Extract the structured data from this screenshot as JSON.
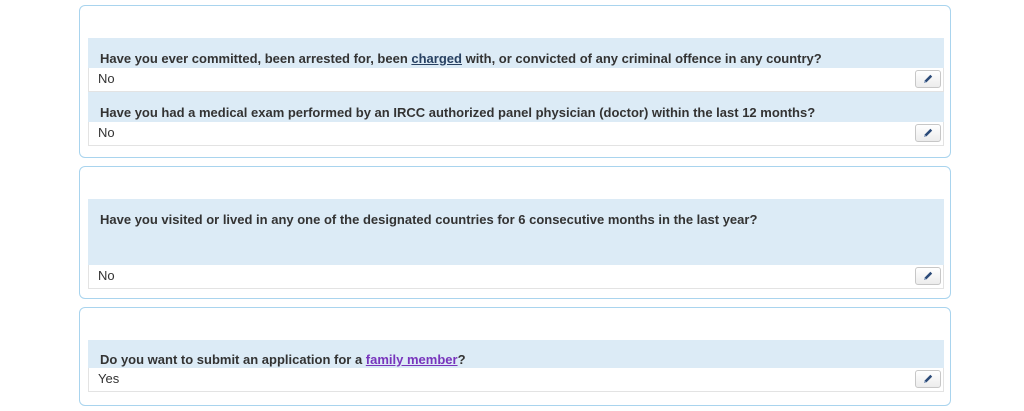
{
  "questions": [
    {
      "text_before": "Have you ever committed, been arrested for, been ",
      "link": "charged",
      "text_after": " with, or convicted of any criminal offence in any country?",
      "answer": "No"
    },
    {
      "text": "Have you had a medical exam performed by an IRCC authorized panel physician (doctor) within the last 12 months?",
      "answer": "No"
    },
    {
      "text": "Have you visited or lived in any one of the designated countries for 6 consecutive months in the last year?",
      "answer": "No"
    },
    {
      "text_before": "Do you want to submit an application for a ",
      "link": "family member",
      "text_after": "?",
      "answer": "Yes"
    }
  ],
  "icons": {
    "edit": "pencil-icon"
  },
  "colors": {
    "question_bg": "#dcebf6",
    "panel_border": "#a9d4ee",
    "link": "#284162",
    "visited_link": "#7834bc"
  }
}
